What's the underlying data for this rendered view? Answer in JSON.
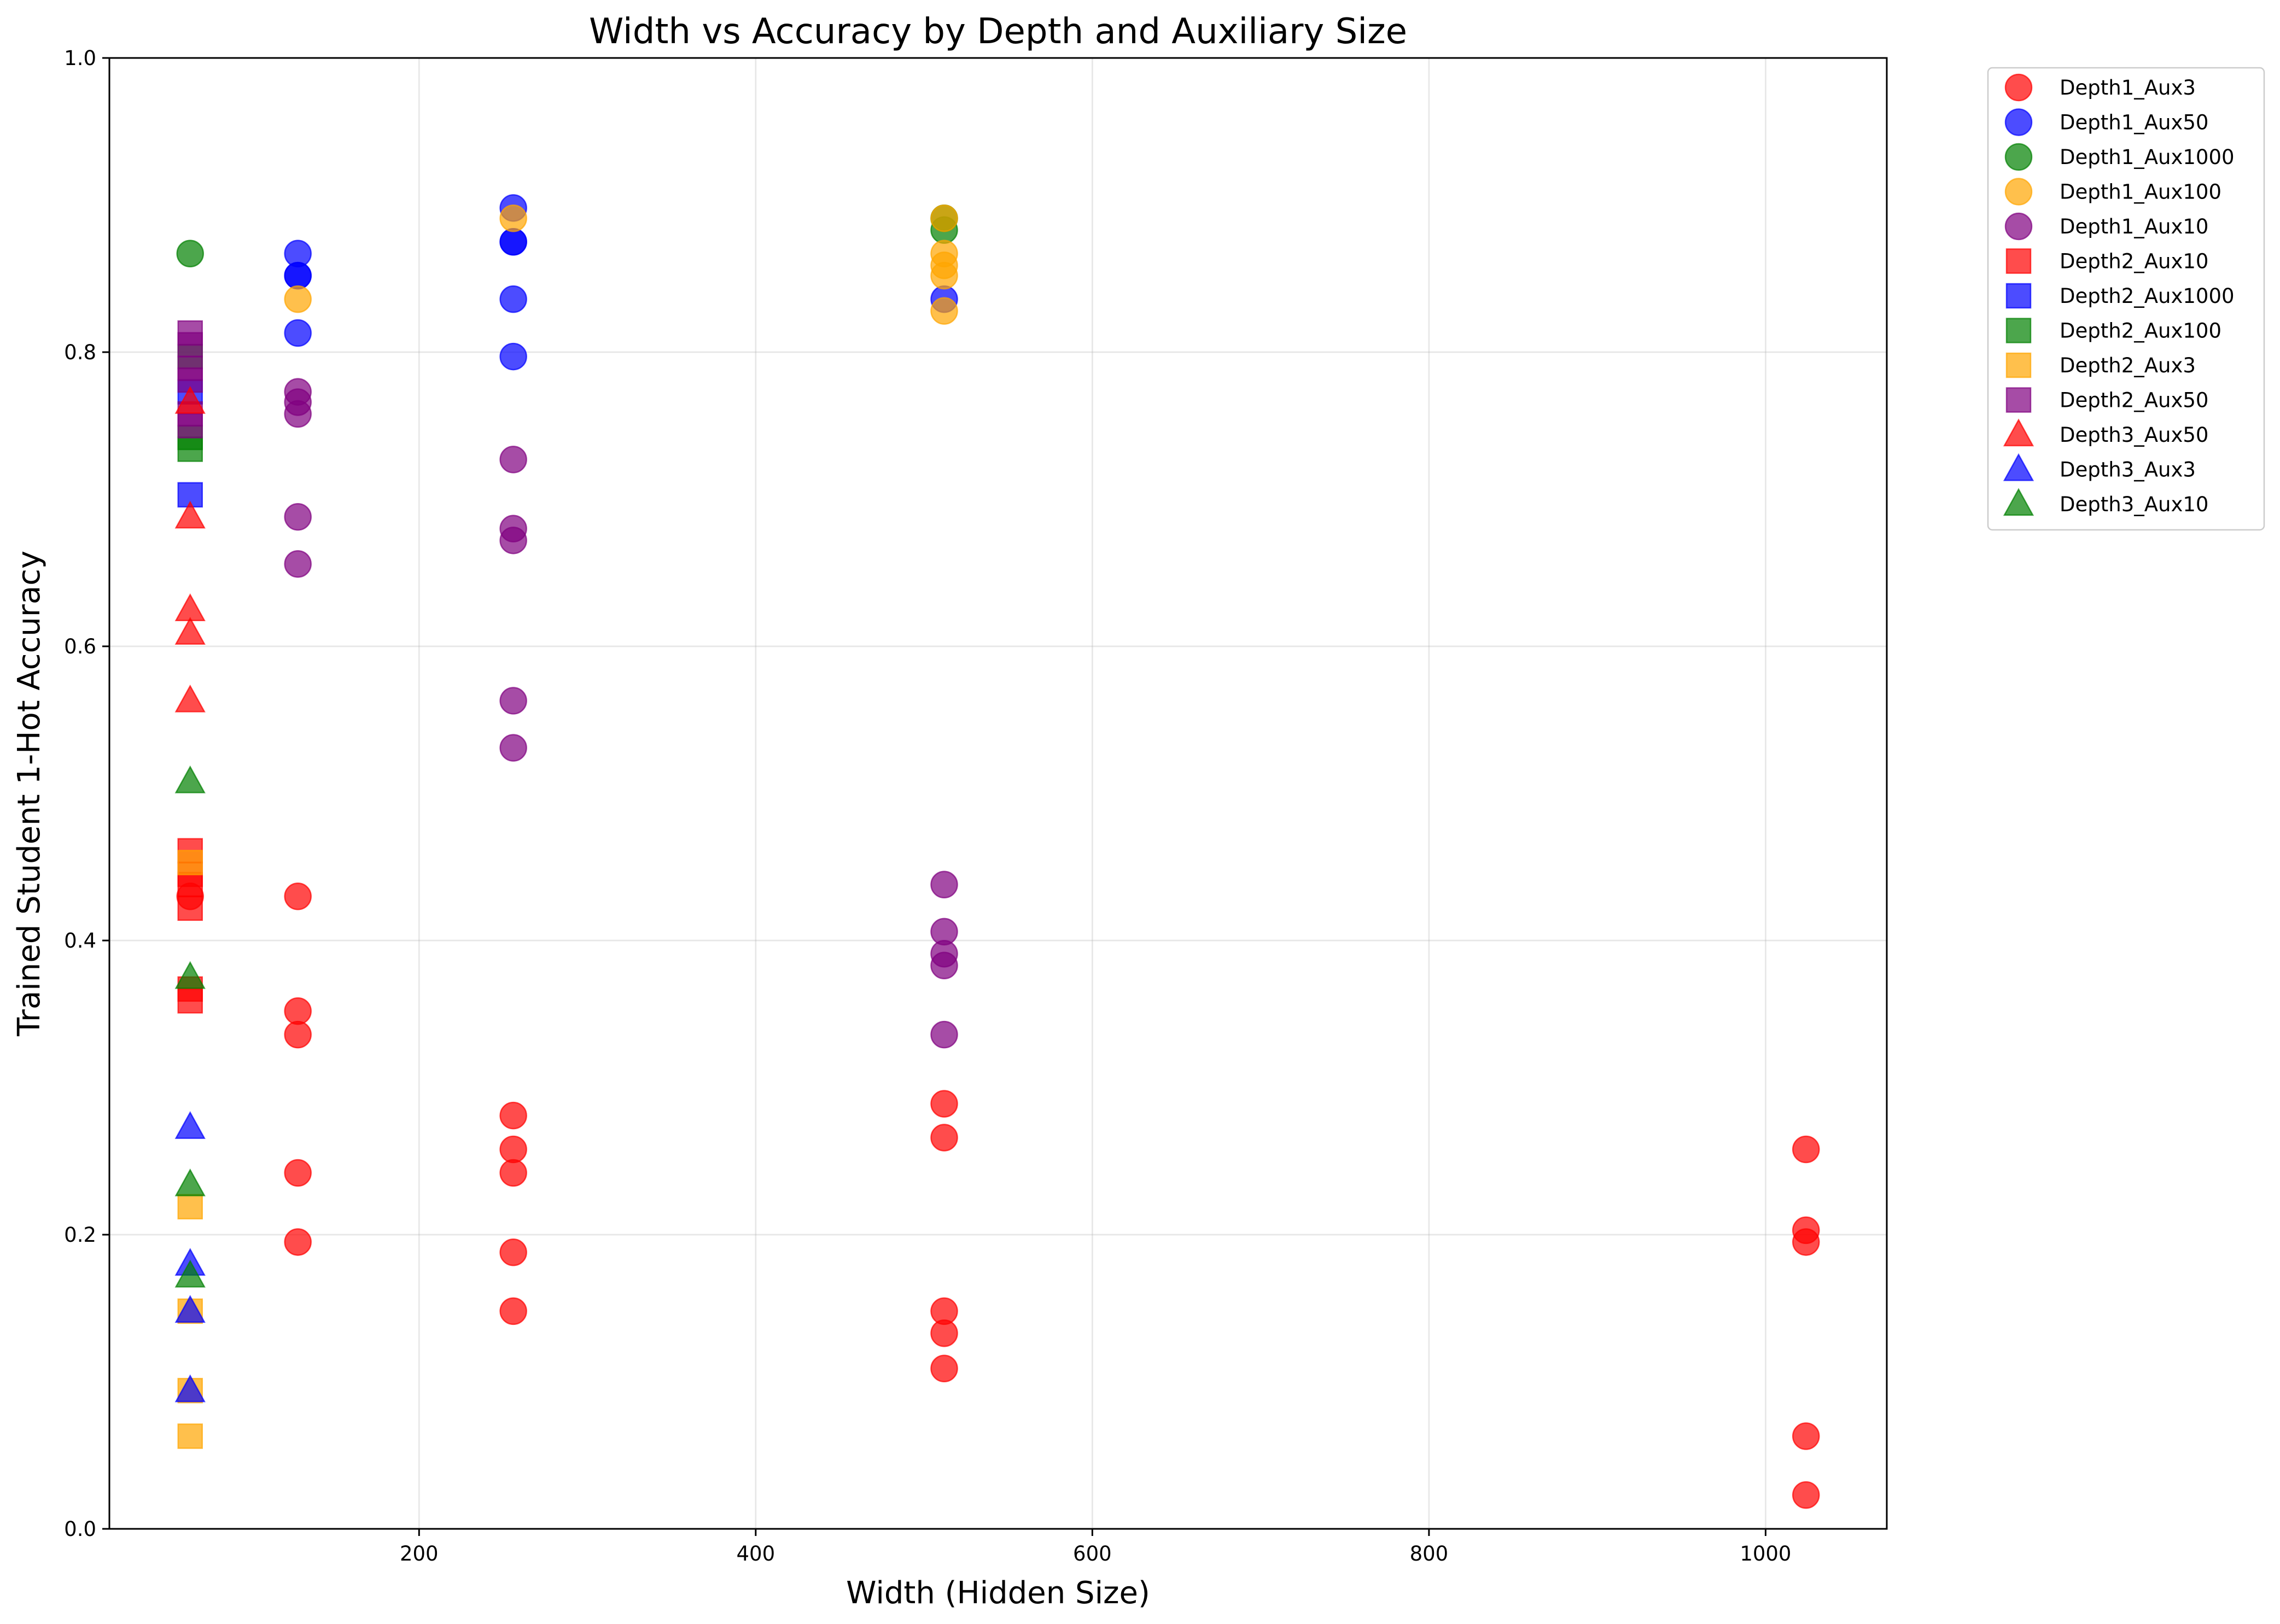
{
  "chart_data": {
    "type": "scatter",
    "title": "Width vs Accuracy by Depth and Auxiliary Size",
    "xlabel": "Width (Hidden Size)",
    "ylabel": "Trained Student 1-Hot Accuracy",
    "xlim": [
      16,
      1072
    ],
    "ylim": [
      0.0,
      1.0
    ],
    "xticks": [
      200,
      400,
      600,
      800,
      1000
    ],
    "yticks": [
      0.0,
      0.2,
      0.4,
      0.6,
      0.8,
      1.0
    ],
    "ytick_labels": [
      "0.0",
      "0.2",
      "0.4",
      "0.6",
      "0.8",
      "1.0"
    ],
    "grid": true,
    "legend_position": "outside-top-right",
    "series": [
      {
        "name": "Depth1_Aux3",
        "marker": "circle",
        "color": "#ff0000",
        "points": [
          [
            64,
            0.43
          ],
          [
            128,
            0.43
          ],
          [
            128,
            0.352
          ],
          [
            128,
            0.336
          ],
          [
            128,
            0.242
          ],
          [
            128,
            0.195
          ],
          [
            256,
            0.281
          ],
          [
            256,
            0.258
          ],
          [
            256,
            0.242
          ],
          [
            256,
            0.188
          ],
          [
            256,
            0.148
          ],
          [
            512,
            0.289
          ],
          [
            512,
            0.266
          ],
          [
            512,
            0.148
          ],
          [
            512,
            0.133
          ],
          [
            512,
            0.109
          ],
          [
            1024,
            0.258
          ],
          [
            1024,
            0.203
          ],
          [
            1024,
            0.195
          ],
          [
            1024,
            0.063
          ],
          [
            1024,
            0.023
          ]
        ]
      },
      {
        "name": "Depth1_Aux50",
        "marker": "circle",
        "color": "#0000ff",
        "points": [
          [
            128,
            0.867
          ],
          [
            128,
            0.852
          ],
          [
            128,
            0.852
          ],
          [
            128,
            0.813
          ],
          [
            256,
            0.898
          ],
          [
            256,
            0.875
          ],
          [
            256,
            0.875
          ],
          [
            256,
            0.836
          ],
          [
            256,
            0.797
          ],
          [
            512,
            0.836
          ]
        ]
      },
      {
        "name": "Depth1_Aux1000",
        "marker": "circle",
        "color": "#008000",
        "points": [
          [
            64,
            0.867
          ],
          [
            512,
            0.883
          ],
          [
            512,
            0.891
          ]
        ]
      },
      {
        "name": "Depth1_Aux100",
        "marker": "circle",
        "color": "#ffa500",
        "points": [
          [
            128,
            0.836
          ],
          [
            256,
            0.891
          ],
          [
            512,
            0.891
          ],
          [
            512,
            0.867
          ],
          [
            512,
            0.859
          ],
          [
            512,
            0.852
          ],
          [
            512,
            0.828
          ]
        ]
      },
      {
        "name": "Depth1_Aux10",
        "marker": "circle",
        "color": "#800080",
        "points": [
          [
            128,
            0.773
          ],
          [
            128,
            0.766
          ],
          [
            128,
            0.758
          ],
          [
            128,
            0.688
          ],
          [
            128,
            0.656
          ],
          [
            256,
            0.727
          ],
          [
            256,
            0.68
          ],
          [
            256,
            0.672
          ],
          [
            256,
            0.563
          ],
          [
            256,
            0.531
          ],
          [
            512,
            0.438
          ],
          [
            512,
            0.406
          ],
          [
            512,
            0.391
          ],
          [
            512,
            0.383
          ],
          [
            512,
            0.336
          ]
        ]
      },
      {
        "name": "Depth2_Aux10",
        "marker": "square",
        "color": "#ff0000",
        "points": [
          [
            64,
            0.461
          ],
          [
            64,
            0.445
          ],
          [
            64,
            0.438
          ],
          [
            64,
            0.422
          ],
          [
            64,
            0.367
          ],
          [
            64,
            0.359
          ]
        ]
      },
      {
        "name": "Depth2_Aux1000",
        "marker": "square",
        "color": "#0000ff",
        "points": [
          [
            64,
            0.703
          ],
          [
            64,
            0.773
          ]
        ]
      },
      {
        "name": "Depth2_Aux100",
        "marker": "square",
        "color": "#008000",
        "points": [
          [
            64,
            0.797
          ],
          [
            64,
            0.742
          ],
          [
            64,
            0.734
          ]
        ]
      },
      {
        "name": "Depth2_Aux3",
        "marker": "square",
        "color": "#ffa500",
        "points": [
          [
            64,
            0.453
          ],
          [
            64,
            0.219
          ],
          [
            64,
            0.148
          ],
          [
            64,
            0.094
          ],
          [
            64,
            0.063
          ]
        ]
      },
      {
        "name": "Depth2_Aux50",
        "marker": "square",
        "color": "#800080",
        "points": [
          [
            64,
            0.813
          ],
          [
            64,
            0.805
          ],
          [
            64,
            0.789
          ],
          [
            64,
            0.781
          ],
          [
            64,
            0.758
          ],
          [
            64,
            0.75
          ]
        ]
      },
      {
        "name": "Depth3_Aux50",
        "marker": "triangle",
        "color": "#ff0000",
        "points": [
          [
            64,
            0.766
          ],
          [
            64,
            0.688
          ],
          [
            64,
            0.625
          ],
          [
            64,
            0.609
          ],
          [
            64,
            0.563
          ]
        ]
      },
      {
        "name": "Depth3_Aux3",
        "marker": "triangle",
        "color": "#0000ff",
        "points": [
          [
            64,
            0.273
          ],
          [
            64,
            0.18
          ],
          [
            64,
            0.148
          ],
          [
            64,
            0.094
          ]
        ]
      },
      {
        "name": "Depth3_Aux10",
        "marker": "triangle",
        "color": "#008000",
        "points": [
          [
            64,
            0.508
          ],
          [
            64,
            0.375
          ],
          [
            64,
            0.234
          ],
          [
            64,
            0.172
          ]
        ]
      }
    ]
  }
}
